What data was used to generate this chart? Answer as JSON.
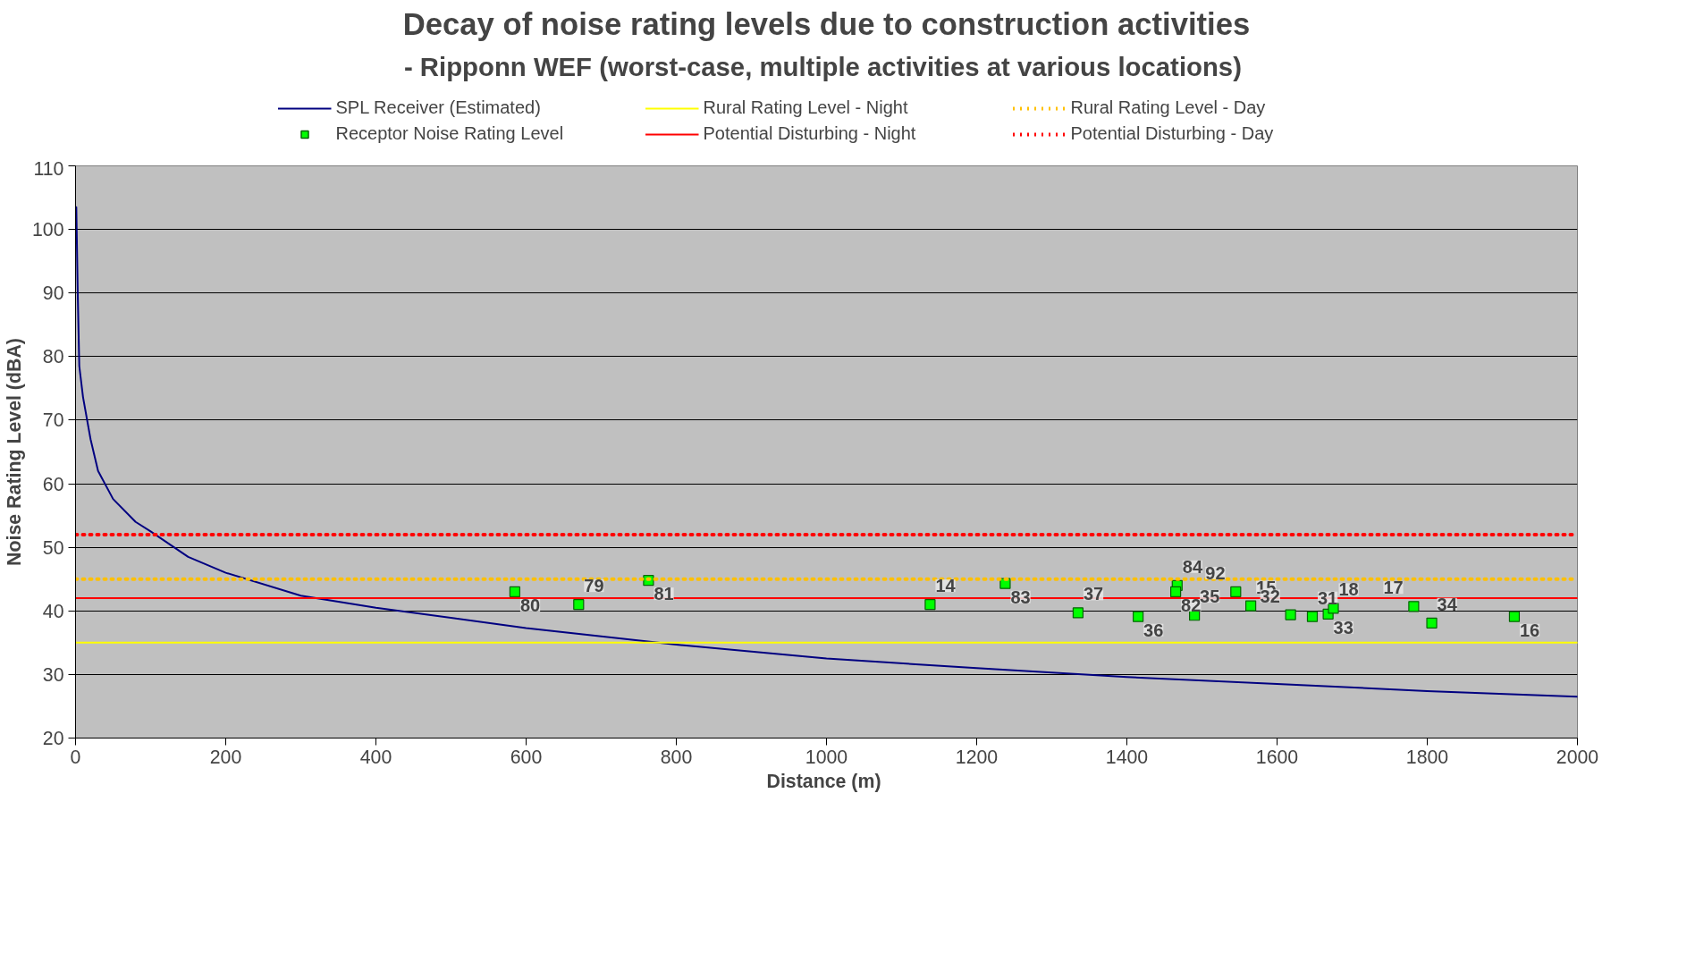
{
  "chart_data": {
    "type": "line",
    "title": "Decay of noise rating levels due to construction activities",
    "subtitle": "- Ripponn WEF (worst-case, multiple  activities at various locations)",
    "xlabel": "Distance  (m)",
    "ylabel": "Noise Rating Level (dBA)",
    "xlim": [
      0,
      2000
    ],
    "xticks": [
      0,
      200,
      400,
      600,
      800,
      1000,
      1200,
      1400,
      1600,
      1800,
      2000
    ],
    "ylim": [
      20,
      110
    ],
    "yticks": [
      20,
      30,
      40,
      50,
      60,
      70,
      80,
      90,
      100,
      110
    ],
    "grid": "y",
    "legend": "top",
    "annotations": [
      {
        "text": "80",
        "x": 585,
        "y": 43
      },
      {
        "text": "79",
        "x": 670,
        "y": 41
      },
      {
        "text": "81",
        "x": 763,
        "y": 44.8
      },
      {
        "text": "14",
        "x": 1138,
        "y": 41
      },
      {
        "text": "83",
        "x": 1238,
        "y": 44.3
      },
      {
        "text": "37",
        "x": 1335,
        "y": 39.7
      },
      {
        "text": "36",
        "x": 1415,
        "y": 39.1
      },
      {
        "text": "84",
        "x": 1467,
        "y": 44
      },
      {
        "text": "82",
        "x": 1465,
        "y": 43
      },
      {
        "text": "35",
        "x": 1490,
        "y": 39.3
      },
      {
        "text": "92",
        "x": 1545,
        "y": 43
      },
      {
        "text": "15",
        "x": 1565,
        "y": 40.8
      },
      {
        "text": "32",
        "x": 1618,
        "y": 39.4
      },
      {
        "text": "31",
        "x": 1647,
        "y": 39.1
      },
      {
        "text": "33",
        "x": 1668,
        "y": 39.5
      },
      {
        "text": "18",
        "x": 1675,
        "y": 40.4
      },
      {
        "text": "17",
        "x": 1782,
        "y": 40.7
      },
      {
        "text": "34",
        "x": 1806,
        "y": 38.1
      },
      {
        "text": "16",
        "x": 1916,
        "y": 39.1
      }
    ],
    "series": [
      {
        "name": "SPL Receiver (Estimated)",
        "color": "#000080",
        "line_style": "solid",
        "marker": "none",
        "x": [
          1,
          3,
          5,
          10,
          20,
          30,
          50,
          80,
          100,
          150,
          200,
          300,
          400,
          600,
          800,
          1000,
          1200,
          1400,
          1600,
          1800,
          2000
        ],
        "values": [
          103.5,
          89.5,
          78.5,
          73.6,
          67,
          62,
          57.6,
          54,
          52.5,
          48.5,
          46,
          42.4,
          40.5,
          37.3,
          34.7,
          32.5,
          31,
          29.6,
          28.5,
          27.4,
          26.5
        ]
      },
      {
        "name": "Receptor Noise Rating Level",
        "type": "scatter",
        "color": "#00ff00",
        "marker": "square",
        "x": [
          585,
          670,
          763,
          1138,
          1238,
          1335,
          1415,
          1467,
          1465,
          1490,
          1545,
          1565,
          1618,
          1647,
          1668,
          1675,
          1782,
          1806,
          1916
        ],
        "values": [
          43,
          41,
          44.8,
          41,
          44.3,
          39.7,
          39.1,
          44,
          43,
          39.3,
          43,
          40.8,
          39.4,
          39.1,
          39.5,
          40.4,
          40.7,
          38.1,
          39.1
        ]
      },
      {
        "name": "Rural Rating Level - Night",
        "color": "#ffff00",
        "line_style": "solid",
        "marker": "none",
        "x": [
          0,
          2000
        ],
        "values": [
          35,
          35
        ]
      },
      {
        "name": "Potential Disturbing - Night",
        "color": "#ff0000",
        "line_style": "solid",
        "marker": "none",
        "x": [
          0,
          2000
        ],
        "values": [
          42,
          42
        ]
      },
      {
        "name": "Rural Rating Level - Day",
        "color": "#ffc000",
        "line_style": "dotted",
        "marker": "none",
        "x": [
          0,
          2000
        ],
        "values": [
          45,
          45
        ]
      },
      {
        "name": "Potential Disturbing - Day",
        "color": "#ff0000",
        "line_style": "dotted",
        "marker": "none",
        "x": [
          0,
          2000
        ],
        "values": [
          52,
          52
        ]
      }
    ]
  }
}
